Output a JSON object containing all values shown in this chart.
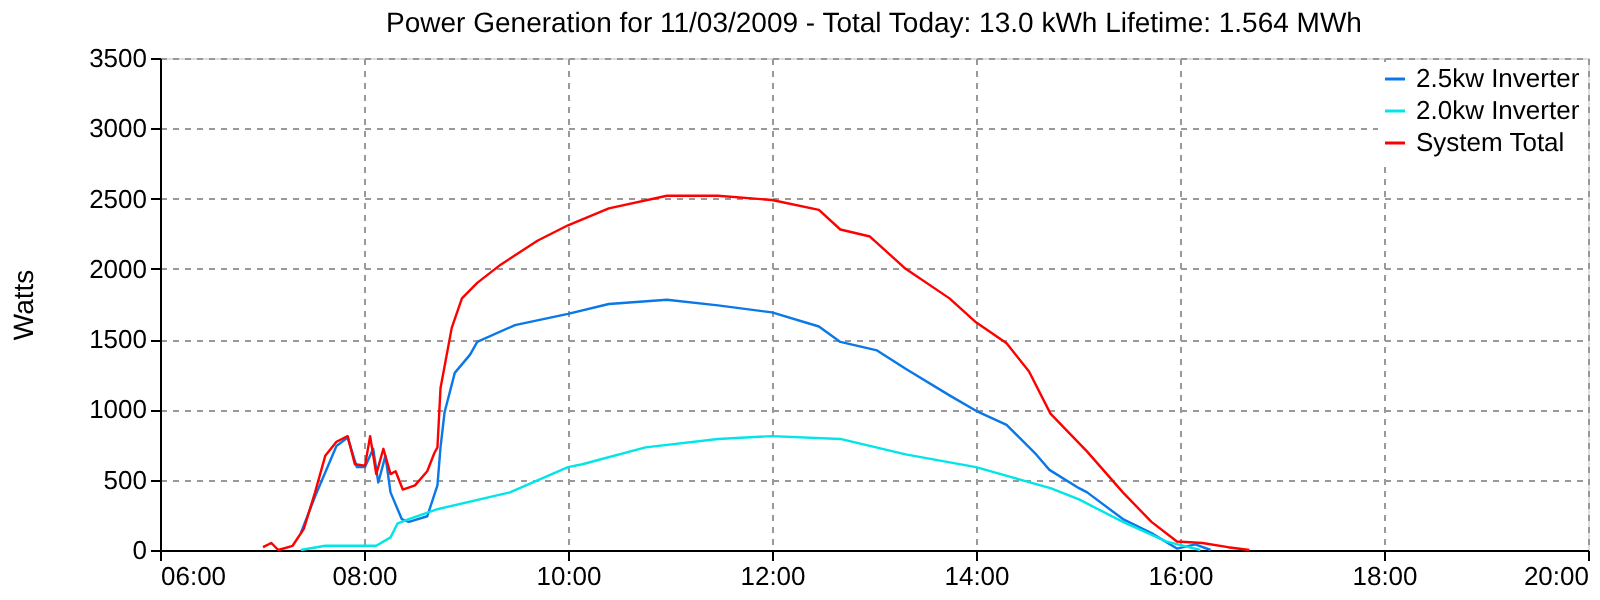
{
  "chart_data": {
    "type": "line",
    "title": "Power Generation for 11/03/2009 - Total Today: 13.0 kWh   Lifetime: 1.564 MWh",
    "ylabel": "Watts",
    "xlim": [
      6,
      20
    ],
    "xticks": [
      {
        "value": 6,
        "label": "06:00"
      },
      {
        "value": 8,
        "label": "08:00"
      },
      {
        "value": 10,
        "label": "10:00"
      },
      {
        "value": 12,
        "label": "12:00"
      },
      {
        "value": 14,
        "label": "14:00"
      },
      {
        "value": 16,
        "label": "16:00"
      },
      {
        "value": 18,
        "label": "18:00"
      },
      {
        "value": 20,
        "label": "20:00"
      }
    ],
    "ylim": [
      0,
      3500
    ],
    "yticks": [
      0,
      500,
      1000,
      1500,
      2000,
      2500,
      3000,
      3500
    ],
    "grid": true,
    "legend": "top right",
    "marker": "none",
    "line_style": "solid",
    "series": [
      {
        "name": "2.5kw Inverter",
        "color": "#0a78e6",
        "x": [
          7.38,
          7.52,
          7.73,
          7.84,
          7.93,
          8.01,
          8.09,
          8.14,
          8.21,
          8.26,
          8.37,
          8.44,
          8.62,
          8.72,
          8.75,
          8.79,
          8.89,
          9.04,
          9.11,
          9.48,
          10.0,
          10.4,
          10.97,
          11.47,
          12.0,
          12.46,
          12.67,
          13.03,
          13.31,
          13.74,
          14.0,
          14.3,
          14.59,
          14.72,
          15.01,
          15.09,
          15.44,
          15.72,
          15.97,
          16.15,
          16.3
        ],
        "values": [
          120,
          380,
          740,
          800,
          590,
          590,
          720,
          480,
          670,
          410,
          220,
          200,
          240,
          460,
          730,
          980,
          1260,
          1390,
          1480,
          1600,
          1680,
          1750,
          1780,
          1740,
          1690,
          1590,
          1480,
          1420,
          1290,
          1100,
          990,
          890,
          680,
          570,
          440,
          410,
          220,
          120,
          10,
          40,
          0
        ]
      },
      {
        "name": "2.0kw Inverter",
        "color": "#00e6e6",
        "x": [
          7.38,
          7.62,
          8.12,
          8.26,
          8.33,
          8.44,
          8.72,
          9.43,
          10.0,
          10.14,
          10.76,
          11.47,
          12.0,
          12.67,
          13.31,
          14.0,
          14.73,
          15.01,
          15.44,
          15.87,
          16.2
        ],
        "values": [
          0,
          30,
          30,
          90,
          190,
          220,
          290,
          410,
          590,
          610,
          730,
          790,
          810,
          790,
          680,
          590,
          440,
          360,
          200,
          60,
          0
        ]
      },
      {
        "name": "System Total",
        "color": "#ff0000",
        "x": [
          7.01,
          7.09,
          7.16,
          7.3,
          7.41,
          7.52,
          7.62,
          7.73,
          7.84,
          7.91,
          8.01,
          8.06,
          8.12,
          8.19,
          8.26,
          8.31,
          8.38,
          8.5,
          8.62,
          8.69,
          8.72,
          8.75,
          8.86,
          8.96,
          9.11,
          9.34,
          9.7,
          10.0,
          10.4,
          10.97,
          11.47,
          12.0,
          12.46,
          12.67,
          12.96,
          13.31,
          13.74,
          14.0,
          14.3,
          14.52,
          14.73,
          15.09,
          15.44,
          15.72,
          15.97,
          16.22,
          16.47,
          16.68
        ],
        "values": [
          20,
          50,
          0,
          30,
          150,
          410,
          670,
          770,
          810,
          610,
          600,
          810,
          540,
          720,
          540,
          560,
          430,
          460,
          560,
          690,
          730,
          1150,
          1580,
          1790,
          1900,
          2030,
          2200,
          2310,
          2430,
          2520,
          2520,
          2490,
          2420,
          2280,
          2230,
          2000,
          1790,
          1620,
          1470,
          1270,
          970,
          700,
          410,
          200,
          60,
          50,
          20,
          0
        ]
      }
    ]
  }
}
